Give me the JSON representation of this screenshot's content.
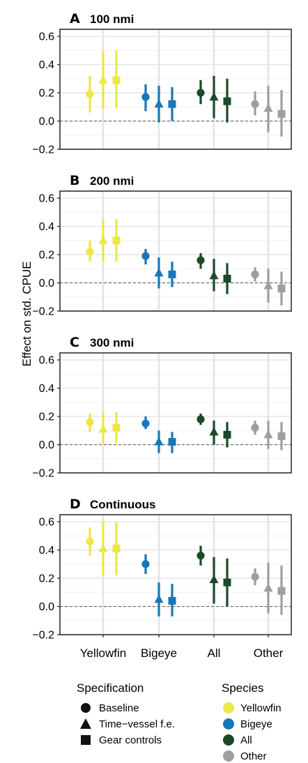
{
  "colors": {
    "Yellowfin": "#ece648",
    "Bigeye": "#1777b8",
    "All": "#1b4a28",
    "Other": "#9e9e9e"
  },
  "chart_data": {
    "type": "scatter",
    "subtype": "point-range",
    "ylabel": "Effect on std. CPUE",
    "categories": [
      "Yellowfin",
      "Bigeye",
      "All",
      "Other"
    ],
    "ylim": [
      -0.2,
      0.65
    ],
    "yticks": [
      "0.6",
      "0.4",
      "0.2",
      "0.0",
      "−0.2"
    ],
    "ytick_values": [
      0.6,
      0.4,
      0.2,
      0.0,
      -0.2
    ],
    "reference_line": 0.0,
    "grid": true,
    "legend_specification": {
      "title": "Specification",
      "items": [
        {
          "label": "Baseline",
          "shape": "circle"
        },
        {
          "label": "Time−vessel f.e.",
          "shape": "triangle"
        },
        {
          "label": "Gear controls",
          "shape": "square"
        }
      ]
    },
    "legend_species": {
      "title": "Species",
      "items": [
        "Yellowfin",
        "Bigeye",
        "All",
        "Other"
      ]
    },
    "panels": [
      {
        "letter": "A",
        "title": "100 nmi",
        "points": [
          {
            "category": "Yellowfin",
            "spec": "Baseline",
            "estimate": 0.19,
            "low": 0.06,
            "high": 0.32
          },
          {
            "category": "Yellowfin",
            "spec": "Time−vessel f.e.",
            "estimate": 0.29,
            "low": 0.09,
            "high": 0.49
          },
          {
            "category": "Yellowfin",
            "spec": "Gear controls",
            "estimate": 0.29,
            "low": 0.09,
            "high": 0.5
          },
          {
            "category": "Bigeye",
            "spec": "Baseline",
            "estimate": 0.17,
            "low": 0.07,
            "high": 0.26
          },
          {
            "category": "Bigeye",
            "spec": "Time−vessel f.e.",
            "estimate": 0.12,
            "low": -0.01,
            "high": 0.25
          },
          {
            "category": "Bigeye",
            "spec": "Gear controls",
            "estimate": 0.12,
            "low": 0.0,
            "high": 0.24
          },
          {
            "category": "All",
            "spec": "Baseline",
            "estimate": 0.2,
            "low": 0.12,
            "high": 0.29
          },
          {
            "category": "All",
            "spec": "Time−vessel f.e.",
            "estimate": 0.17,
            "low": 0.02,
            "high": 0.32
          },
          {
            "category": "All",
            "spec": "Gear controls",
            "estimate": 0.14,
            "low": -0.01,
            "high": 0.3
          },
          {
            "category": "Other",
            "spec": "Baseline",
            "estimate": 0.12,
            "low": 0.04,
            "high": 0.21
          },
          {
            "category": "Other",
            "spec": "Time−vessel f.e.",
            "estimate": 0.09,
            "low": -0.08,
            "high": 0.25
          },
          {
            "category": "Other",
            "spec": "Gear controls",
            "estimate": 0.05,
            "low": -0.11,
            "high": 0.22
          }
        ]
      },
      {
        "letter": "B",
        "title": "200 nmi",
        "points": [
          {
            "category": "Yellowfin",
            "spec": "Baseline",
            "estimate": 0.22,
            "low": 0.15,
            "high": 0.3
          },
          {
            "category": "Yellowfin",
            "spec": "Time−vessel f.e.",
            "estimate": 0.3,
            "low": 0.15,
            "high": 0.45
          },
          {
            "category": "Yellowfin",
            "spec": "Gear controls",
            "estimate": 0.3,
            "low": 0.15,
            "high": 0.45
          },
          {
            "category": "Bigeye",
            "spec": "Baseline",
            "estimate": 0.19,
            "low": 0.13,
            "high": 0.24
          },
          {
            "category": "Bigeye",
            "spec": "Time−vessel f.e.",
            "estimate": 0.07,
            "low": -0.04,
            "high": 0.18
          },
          {
            "category": "Bigeye",
            "spec": "Gear controls",
            "estimate": 0.06,
            "low": -0.03,
            "high": 0.15
          },
          {
            "category": "All",
            "spec": "Baseline",
            "estimate": 0.16,
            "low": 0.1,
            "high": 0.21
          },
          {
            "category": "All",
            "spec": "Time−vessel f.e.",
            "estimate": 0.05,
            "low": -0.06,
            "high": 0.17
          },
          {
            "category": "All",
            "spec": "Gear controls",
            "estimate": 0.03,
            "low": -0.08,
            "high": 0.14
          },
          {
            "category": "Other",
            "spec": "Baseline",
            "estimate": 0.06,
            "low": 0.01,
            "high": 0.11
          },
          {
            "category": "Other",
            "spec": "Time−vessel f.e.",
            "estimate": -0.02,
            "low": -0.14,
            "high": 0.1
          },
          {
            "category": "Other",
            "spec": "Gear controls",
            "estimate": -0.04,
            "low": -0.16,
            "high": 0.08
          }
        ]
      },
      {
        "letter": "C",
        "title": "300 nmi",
        "points": [
          {
            "category": "Yellowfin",
            "spec": "Baseline",
            "estimate": 0.16,
            "low": 0.09,
            "high": 0.22
          },
          {
            "category": "Yellowfin",
            "spec": "Time−vessel f.e.",
            "estimate": 0.11,
            "low": 0.0,
            "high": 0.23
          },
          {
            "category": "Yellowfin",
            "spec": "Gear controls",
            "estimate": 0.12,
            "low": 0.01,
            "high": 0.23
          },
          {
            "category": "Bigeye",
            "spec": "Baseline",
            "estimate": 0.15,
            "low": 0.11,
            "high": 0.2
          },
          {
            "category": "Bigeye",
            "spec": "Time−vessel f.e.",
            "estimate": 0.02,
            "low": -0.06,
            "high": 0.1
          },
          {
            "category": "Bigeye",
            "spec": "Gear controls",
            "estimate": 0.02,
            "low": -0.06,
            "high": 0.09
          },
          {
            "category": "All",
            "spec": "Baseline",
            "estimate": 0.18,
            "low": 0.14,
            "high": 0.22
          },
          {
            "category": "All",
            "spec": "Time−vessel f.e.",
            "estimate": 0.09,
            "low": 0.0,
            "high": 0.17
          },
          {
            "category": "All",
            "spec": "Gear controls",
            "estimate": 0.07,
            "low": -0.02,
            "high": 0.16
          },
          {
            "category": "Other",
            "spec": "Baseline",
            "estimate": 0.12,
            "low": 0.07,
            "high": 0.17
          },
          {
            "category": "Other",
            "spec": "Time−vessel f.e.",
            "estimate": 0.07,
            "low": -0.03,
            "high": 0.17
          },
          {
            "category": "Other",
            "spec": "Gear controls",
            "estimate": 0.06,
            "low": -0.04,
            "high": 0.16
          }
        ]
      },
      {
        "letter": "D",
        "title": "Continuous",
        "points": [
          {
            "category": "Yellowfin",
            "spec": "Baseline",
            "estimate": 0.46,
            "low": 0.36,
            "high": 0.56
          },
          {
            "category": "Yellowfin",
            "spec": "Time−vessel f.e.",
            "estimate": 0.41,
            "low": 0.22,
            "high": 0.6
          },
          {
            "category": "Yellowfin",
            "spec": "Gear controls",
            "estimate": 0.41,
            "low": 0.22,
            "high": 0.6
          },
          {
            "category": "Bigeye",
            "spec": "Baseline",
            "estimate": 0.3,
            "low": 0.23,
            "high": 0.37
          },
          {
            "category": "Bigeye",
            "spec": "Time−vessel f.e.",
            "estimate": 0.05,
            "low": -0.07,
            "high": 0.17
          },
          {
            "category": "Bigeye",
            "spec": "Gear controls",
            "estimate": 0.04,
            "low": -0.07,
            "high": 0.16
          },
          {
            "category": "All",
            "spec": "Baseline",
            "estimate": 0.36,
            "low": 0.29,
            "high": 0.43
          },
          {
            "category": "All",
            "spec": "Time−vessel f.e.",
            "estimate": 0.19,
            "low": 0.02,
            "high": 0.35
          },
          {
            "category": "All",
            "spec": "Gear controls",
            "estimate": 0.17,
            "low": 0.0,
            "high": 0.34
          },
          {
            "category": "Other",
            "spec": "Baseline",
            "estimate": 0.21,
            "low": 0.15,
            "high": 0.27
          },
          {
            "category": "Other",
            "spec": "Time−vessel f.e.",
            "estimate": 0.13,
            "low": -0.05,
            "high": 0.31
          },
          {
            "category": "Other",
            "spec": "Gear controls",
            "estimate": 0.11,
            "low": -0.06,
            "high": 0.29
          }
        ]
      }
    ]
  }
}
